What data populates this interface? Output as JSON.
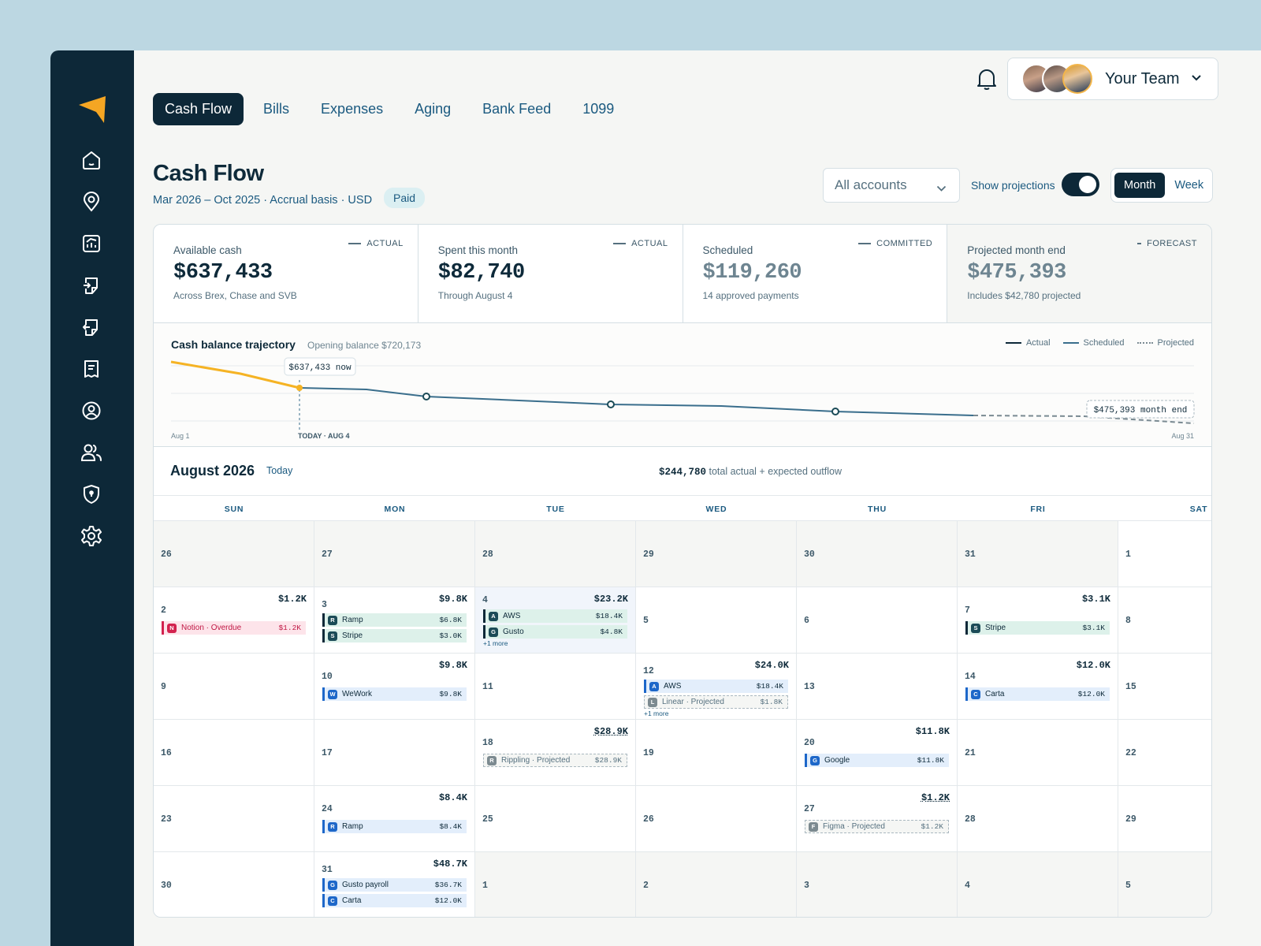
{
  "tabs": [
    "Cash Flow",
    "Bills",
    "Expenses",
    "Aging",
    "Bank Feed",
    "1099"
  ],
  "team": {
    "name": "Your Team"
  },
  "page": {
    "title": "Cash Flow",
    "subtitle": "Mar 2026 – Oct 2025 · Accrual basis · USD",
    "badge": "Paid"
  },
  "controls": {
    "account": "All accounts",
    "projections_label": "Show projections",
    "projections_on": true,
    "view_month": "Month",
    "view_week": "Week"
  },
  "stats": [
    {
      "label": "Available cash",
      "value": "$637,433",
      "note": "Across Brex, Chase and SVB",
      "tag": "ACTUAL"
    },
    {
      "label": "Spent this month",
      "value": "$82,740",
      "note": "Through August 4",
      "tag": "ACTUAL"
    },
    {
      "label": "Scheduled",
      "value": "$119,260",
      "note": "14 approved payments",
      "tag": "COMMITTED"
    },
    {
      "label": "Projected month end",
      "value": "$475,393",
      "note": "Includes $42,780 projected",
      "tag": "FORECAST"
    }
  ],
  "trajectory": {
    "title": "Cash balance trajectory",
    "subtitle": "Opening balance $720,173",
    "legend": {
      "actual": "Actual",
      "scheduled": "Scheduled",
      "projected": "Projected"
    },
    "now_label": "$637,433 now",
    "end_label": "$475,393 month end",
    "start": "Aug 1",
    "today": "TODAY · AUG 4",
    "end": "Aug 31"
  },
  "calendar": {
    "month": "August 2026",
    "today_btn": "Today",
    "total_value": "$244,780",
    "total_text": "total actual + expected outflow",
    "days": [
      "SUN",
      "MON",
      "TUE",
      "WED",
      "THU",
      "FRI",
      "SAT"
    ],
    "weeks": [
      [
        {
          "d": "26",
          "out": true
        },
        {
          "d": "27",
          "out": true
        },
        {
          "d": "28",
          "out": true
        },
        {
          "d": "29",
          "out": true
        },
        {
          "d": "30",
          "out": true
        },
        {
          "d": "31",
          "out": true
        },
        {
          "d": "1"
        }
      ],
      [
        {
          "d": "2",
          "amt": "$1.2K",
          "ev": [
            {
              "ic": "N",
              "name": "Notion · Overdue",
              "amt": "$1.2K",
              "k": "red"
            }
          ]
        },
        {
          "d": "3",
          "amt": "$9.8K",
          "ev": [
            {
              "ic": "R",
              "name": "Ramp",
              "amt": "$6.8K",
              "k": "green"
            },
            {
              "ic": "S",
              "name": "Stripe",
              "amt": "$3.0K",
              "k": "green"
            }
          ]
        },
        {
          "d": "4",
          "amt": "$23.2K",
          "today": true,
          "ev": [
            {
              "ic": "A",
              "name": "AWS",
              "amt": "$18.4K",
              "k": "green"
            },
            {
              "ic": "G",
              "name": "Gusto",
              "amt": "$4.8K",
              "k": "green"
            }
          ],
          "more": "+1 more"
        },
        {
          "d": "5"
        },
        {
          "d": "6"
        },
        {
          "d": "7",
          "amt": "$3.1K",
          "ev": [
            {
              "ic": "S",
              "name": "Stripe",
              "amt": "$3.1K",
              "k": "green"
            }
          ]
        },
        {
          "d": "8"
        }
      ],
      [
        {
          "d": "9"
        },
        {
          "d": "10",
          "amt": "$9.8K",
          "ev": [
            {
              "ic": "W",
              "name": "WeWork",
              "amt": "$9.8K",
              "k": "blue"
            }
          ]
        },
        {
          "d": "11"
        },
        {
          "d": "12",
          "amt": "$24.0K",
          "ev": [
            {
              "ic": "A",
              "name": "AWS",
              "amt": "$18.4K",
              "k": "blue"
            },
            {
              "ic": "L",
              "name": "Linear · Projected",
              "amt": "$1.8K",
              "k": "proj"
            }
          ],
          "more": "+1 more"
        },
        {
          "d": "13"
        },
        {
          "d": "14",
          "amt": "$12.0K",
          "ev": [
            {
              "ic": "C",
              "name": "Carta",
              "amt": "$12.0K",
              "k": "blue"
            }
          ]
        },
        {
          "d": "15"
        }
      ],
      [
        {
          "d": "16"
        },
        {
          "d": "17"
        },
        {
          "d": "18",
          "amt": "$28.9K",
          "ul": true,
          "ev": [
            {
              "ic": "R",
              "name": "Rippling · Projected",
              "amt": "$28.9K",
              "k": "proj"
            }
          ]
        },
        {
          "d": "19"
        },
        {
          "d": "20",
          "amt": "$11.8K",
          "ev": [
            {
              "ic": "G",
              "name": "Google",
              "amt": "$11.8K",
              "k": "blue"
            }
          ]
        },
        {
          "d": "21"
        },
        {
          "d": "22"
        }
      ],
      [
        {
          "d": "23"
        },
        {
          "d": "24",
          "amt": "$8.4K",
          "ev": [
            {
              "ic": "R",
              "name": "Ramp",
              "amt": "$8.4K",
              "k": "blue"
            }
          ]
        },
        {
          "d": "25"
        },
        {
          "d": "26"
        },
        {
          "d": "27",
          "amt": "$1.2K",
          "ul": true,
          "ev": [
            {
              "ic": "F",
              "name": "Figma · Projected",
              "amt": "$1.2K",
              "k": "proj"
            }
          ]
        },
        {
          "d": "28"
        },
        {
          "d": "29"
        }
      ],
      [
        {
          "d": "30"
        },
        {
          "d": "31",
          "amt": "$48.7K",
          "ev": [
            {
              "ic": "G",
              "name": "Gusto payroll",
              "amt": "$36.7K",
              "k": "blue"
            },
            {
              "ic": "C",
              "name": "Carta",
              "amt": "$12.0K",
              "k": "blue"
            }
          ]
        },
        {
          "d": "1",
          "out": true
        },
        {
          "d": "2",
          "out": true
        },
        {
          "d": "3",
          "out": true
        },
        {
          "d": "4",
          "out": true
        },
        {
          "d": "5",
          "out": true
        }
      ]
    ]
  },
  "colors": {
    "navy": "#0d2838",
    "accent": "#f5a623",
    "link": "#1b5a80",
    "line": "#3a6e8c"
  },
  "icons": [
    "logo",
    "home-icon",
    "map-pin-icon",
    "chart-icon",
    "receipt-in-icon",
    "receipt-out-icon",
    "document-icon",
    "user-icon",
    "users-icon",
    "shield-icon",
    "settings-icon",
    "bell-icon"
  ]
}
